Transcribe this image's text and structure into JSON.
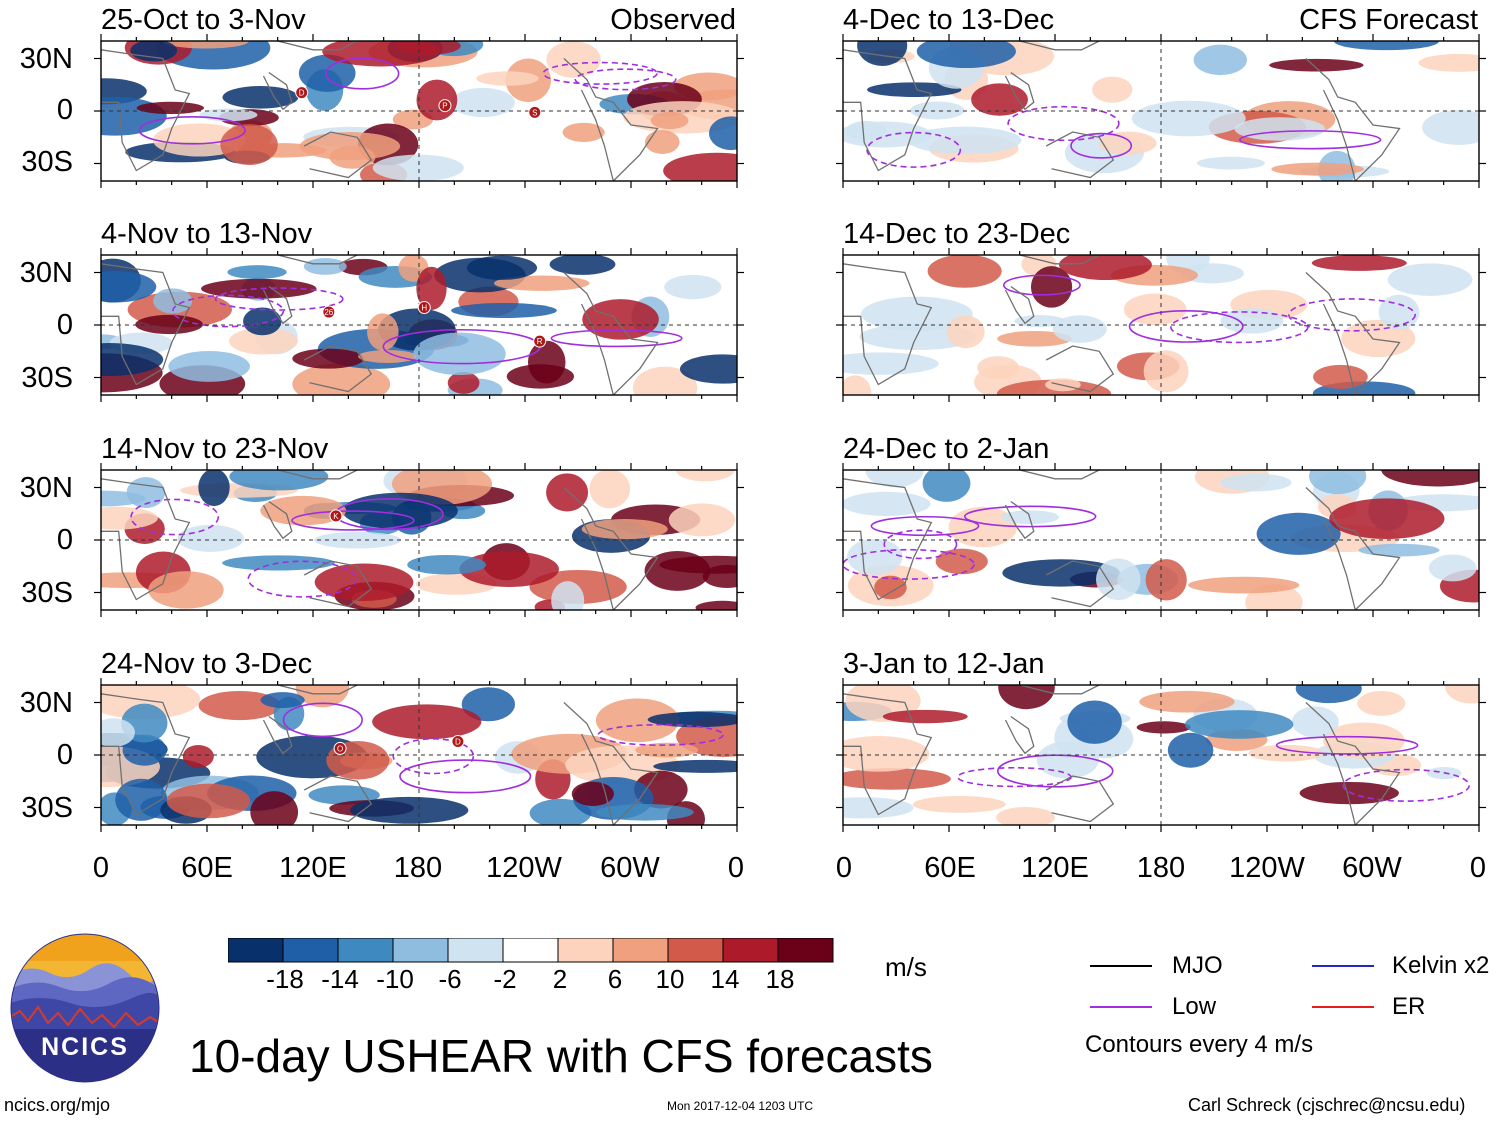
{
  "chart_data": {
    "type": "heatmap",
    "title": "10-day USHEAR with CFS forecasts",
    "units": "m/s",
    "column_labels": {
      "left": "Observed",
      "right": "CFS Forecast"
    },
    "panels": [
      {
        "title": "25-Oct to 3-Nov",
        "source": "Observed",
        "storms": [
          "D",
          "P",
          "S"
        ]
      },
      {
        "title": "4-Nov to 13-Nov",
        "source": "Observed",
        "storms": [
          "26",
          "H",
          "R"
        ]
      },
      {
        "title": "14-Nov to 23-Nov",
        "source": "Observed",
        "storms": [
          "K"
        ]
      },
      {
        "title": "24-Nov to 3-Dec",
        "source": "Observed",
        "storms": [
          "O",
          "D"
        ]
      },
      {
        "title": "4-Dec to 13-Dec",
        "source": "CFS Forecast",
        "storms": []
      },
      {
        "title": "14-Dec to 23-Dec",
        "source": "CFS Forecast",
        "storms": []
      },
      {
        "title": "24-Dec to 2-Jan",
        "source": "CFS Forecast",
        "storms": []
      },
      {
        "title": "3-Jan to 12-Jan",
        "source": "CFS Forecast",
        "storms": []
      }
    ],
    "y_ticks": [
      "30N",
      "0",
      "30S"
    ],
    "x_ticks": [
      "0",
      "60E",
      "120E",
      "180",
      "120W",
      "60W",
      "0"
    ],
    "x_range_deg": [
      0,
      360
    ],
    "y_range_deg": [
      -40,
      40
    ],
    "colorbar": {
      "ticks": [
        -18,
        -14,
        -10,
        -6,
        -2,
        2,
        6,
        10,
        14,
        18
      ],
      "colors": [
        "#08306b",
        "#1f5fa8",
        "#3f89c1",
        "#8fbde0",
        "#cfe3f1",
        "#ffffff",
        "#fdd3bd",
        "#f0a07e",
        "#d25a4a",
        "#ad1b2b",
        "#6b0019"
      ]
    },
    "legend": [
      {
        "label": "MJO",
        "color": "#000000"
      },
      {
        "label": "Kelvin x2",
        "color": "#2326c6"
      },
      {
        "label": "Low",
        "color": "#a02ee0"
      },
      {
        "label": "ER",
        "color": "#e81c1c"
      }
    ],
    "contour_note": "Contours every 4 m/s"
  },
  "footer": {
    "logo_text": "NCICS",
    "url": "ncics.org/mjo",
    "timestamp": "Mon 2017-12-04 1203 UTC",
    "credit": "Carl Schreck (cjschrec@ncsu.edu)"
  }
}
